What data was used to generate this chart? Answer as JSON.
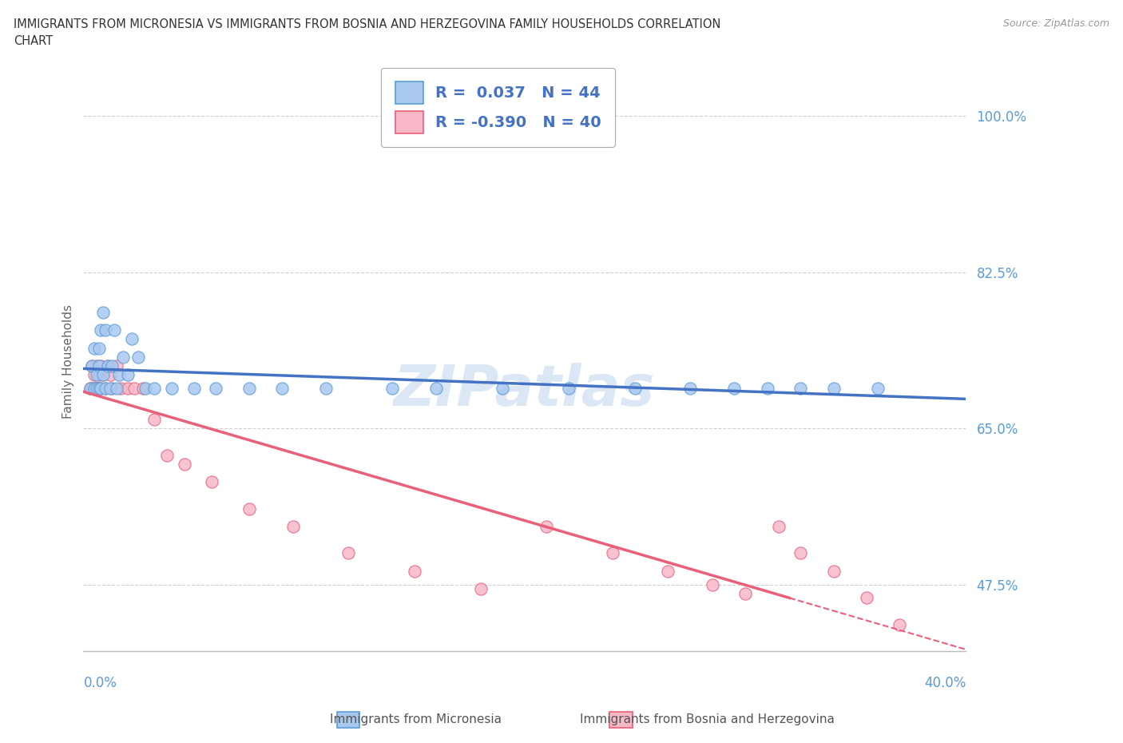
{
  "title": "IMMIGRANTS FROM MICRONESIA VS IMMIGRANTS FROM BOSNIA AND HERZEGOVINA FAMILY HOUSEHOLDS CORRELATION\nCHART",
  "source": "Source: ZipAtlas.com",
  "ylabel": "Family Households",
  "y_ticks_labels": [
    "47.5%",
    "65.0%",
    "82.5%",
    "100.0%"
  ],
  "y_ticks_vals": [
    0.475,
    0.65,
    0.825,
    1.0
  ],
  "x_min": 0.0,
  "x_max": 0.4,
  "y_min": 0.4,
  "y_max": 1.05,
  "micronesia_color": "#A8C8F0",
  "micronesia_edge_color": "#5B9BD5",
  "bosnia_color": "#F8B8C8",
  "bosnia_edge_color": "#E8607A",
  "micronesia_line_color": "#4472C4",
  "bosnia_line_color": "#E8607A",
  "legend_R1": "R =  0.037   N = 44",
  "legend_R2": "R = -0.390   N = 40",
  "legend_label1": "Immigrants from Micronesia",
  "legend_label2": "Immigrants from Bosnia and Herzegovina",
  "watermark": "ZIPatlas",
  "grid_color": "#D0D0D0",
  "background_color": "#FFFFFF",
  "micronesia_x": [
    0.003,
    0.004,
    0.005,
    0.006,
    0.006,
    0.007,
    0.007,
    0.008,
    0.008,
    0.009,
    0.009,
    0.01,
    0.01,
    0.011,
    0.012,
    0.013,
    0.014,
    0.015,
    0.016,
    0.017,
    0.018,
    0.019,
    0.02,
    0.022,
    0.024,
    0.026,
    0.03,
    0.033,
    0.038,
    0.042,
    0.05,
    0.06,
    0.08,
    0.09,
    0.1,
    0.12,
    0.15,
    0.18,
    0.2,
    0.25,
    0.28,
    0.3,
    0.32,
    0.35
  ],
  "micronesia_y": [
    0.72,
    0.695,
    0.71,
    0.69,
    0.74,
    0.7,
    0.72,
    0.695,
    0.73,
    0.71,
    0.695,
    0.72,
    0.695,
    0.76,
    0.78,
    0.72,
    0.76,
    0.695,
    0.71,
    0.695,
    0.73,
    0.695,
    0.72,
    0.71,
    0.75,
    0.73,
    0.695,
    0.695,
    0.695,
    0.695,
    0.695,
    0.695,
    0.695,
    0.695,
    0.695,
    0.695,
    0.695,
    0.695,
    0.695,
    0.695,
    0.695,
    0.695,
    0.695,
    0.695
  ],
  "bosnia_x": [
    0.003,
    0.004,
    0.005,
    0.005,
    0.006,
    0.006,
    0.007,
    0.007,
    0.008,
    0.008,
    0.009,
    0.009,
    0.01,
    0.011,
    0.012,
    0.013,
    0.014,
    0.015,
    0.016,
    0.018,
    0.02,
    0.022,
    0.025,
    0.028,
    0.033,
    0.038,
    0.045,
    0.055,
    0.065,
    0.08,
    0.1,
    0.13,
    0.16,
    0.2,
    0.24,
    0.27,
    0.3,
    0.32,
    0.34,
    0.37
  ],
  "bosnia_y": [
    0.695,
    0.695,
    0.695,
    0.72,
    0.695,
    0.71,
    0.695,
    0.71,
    0.695,
    0.72,
    0.695,
    0.71,
    0.695,
    0.71,
    0.72,
    0.71,
    0.695,
    0.72,
    0.695,
    0.71,
    0.695,
    0.695,
    0.695,
    0.695,
    0.65,
    0.695,
    0.62,
    0.62,
    0.6,
    0.58,
    0.56,
    0.54,
    0.51,
    0.49,
    0.47,
    0.54,
    0.52,
    0.49,
    0.46,
    0.43
  ]
}
